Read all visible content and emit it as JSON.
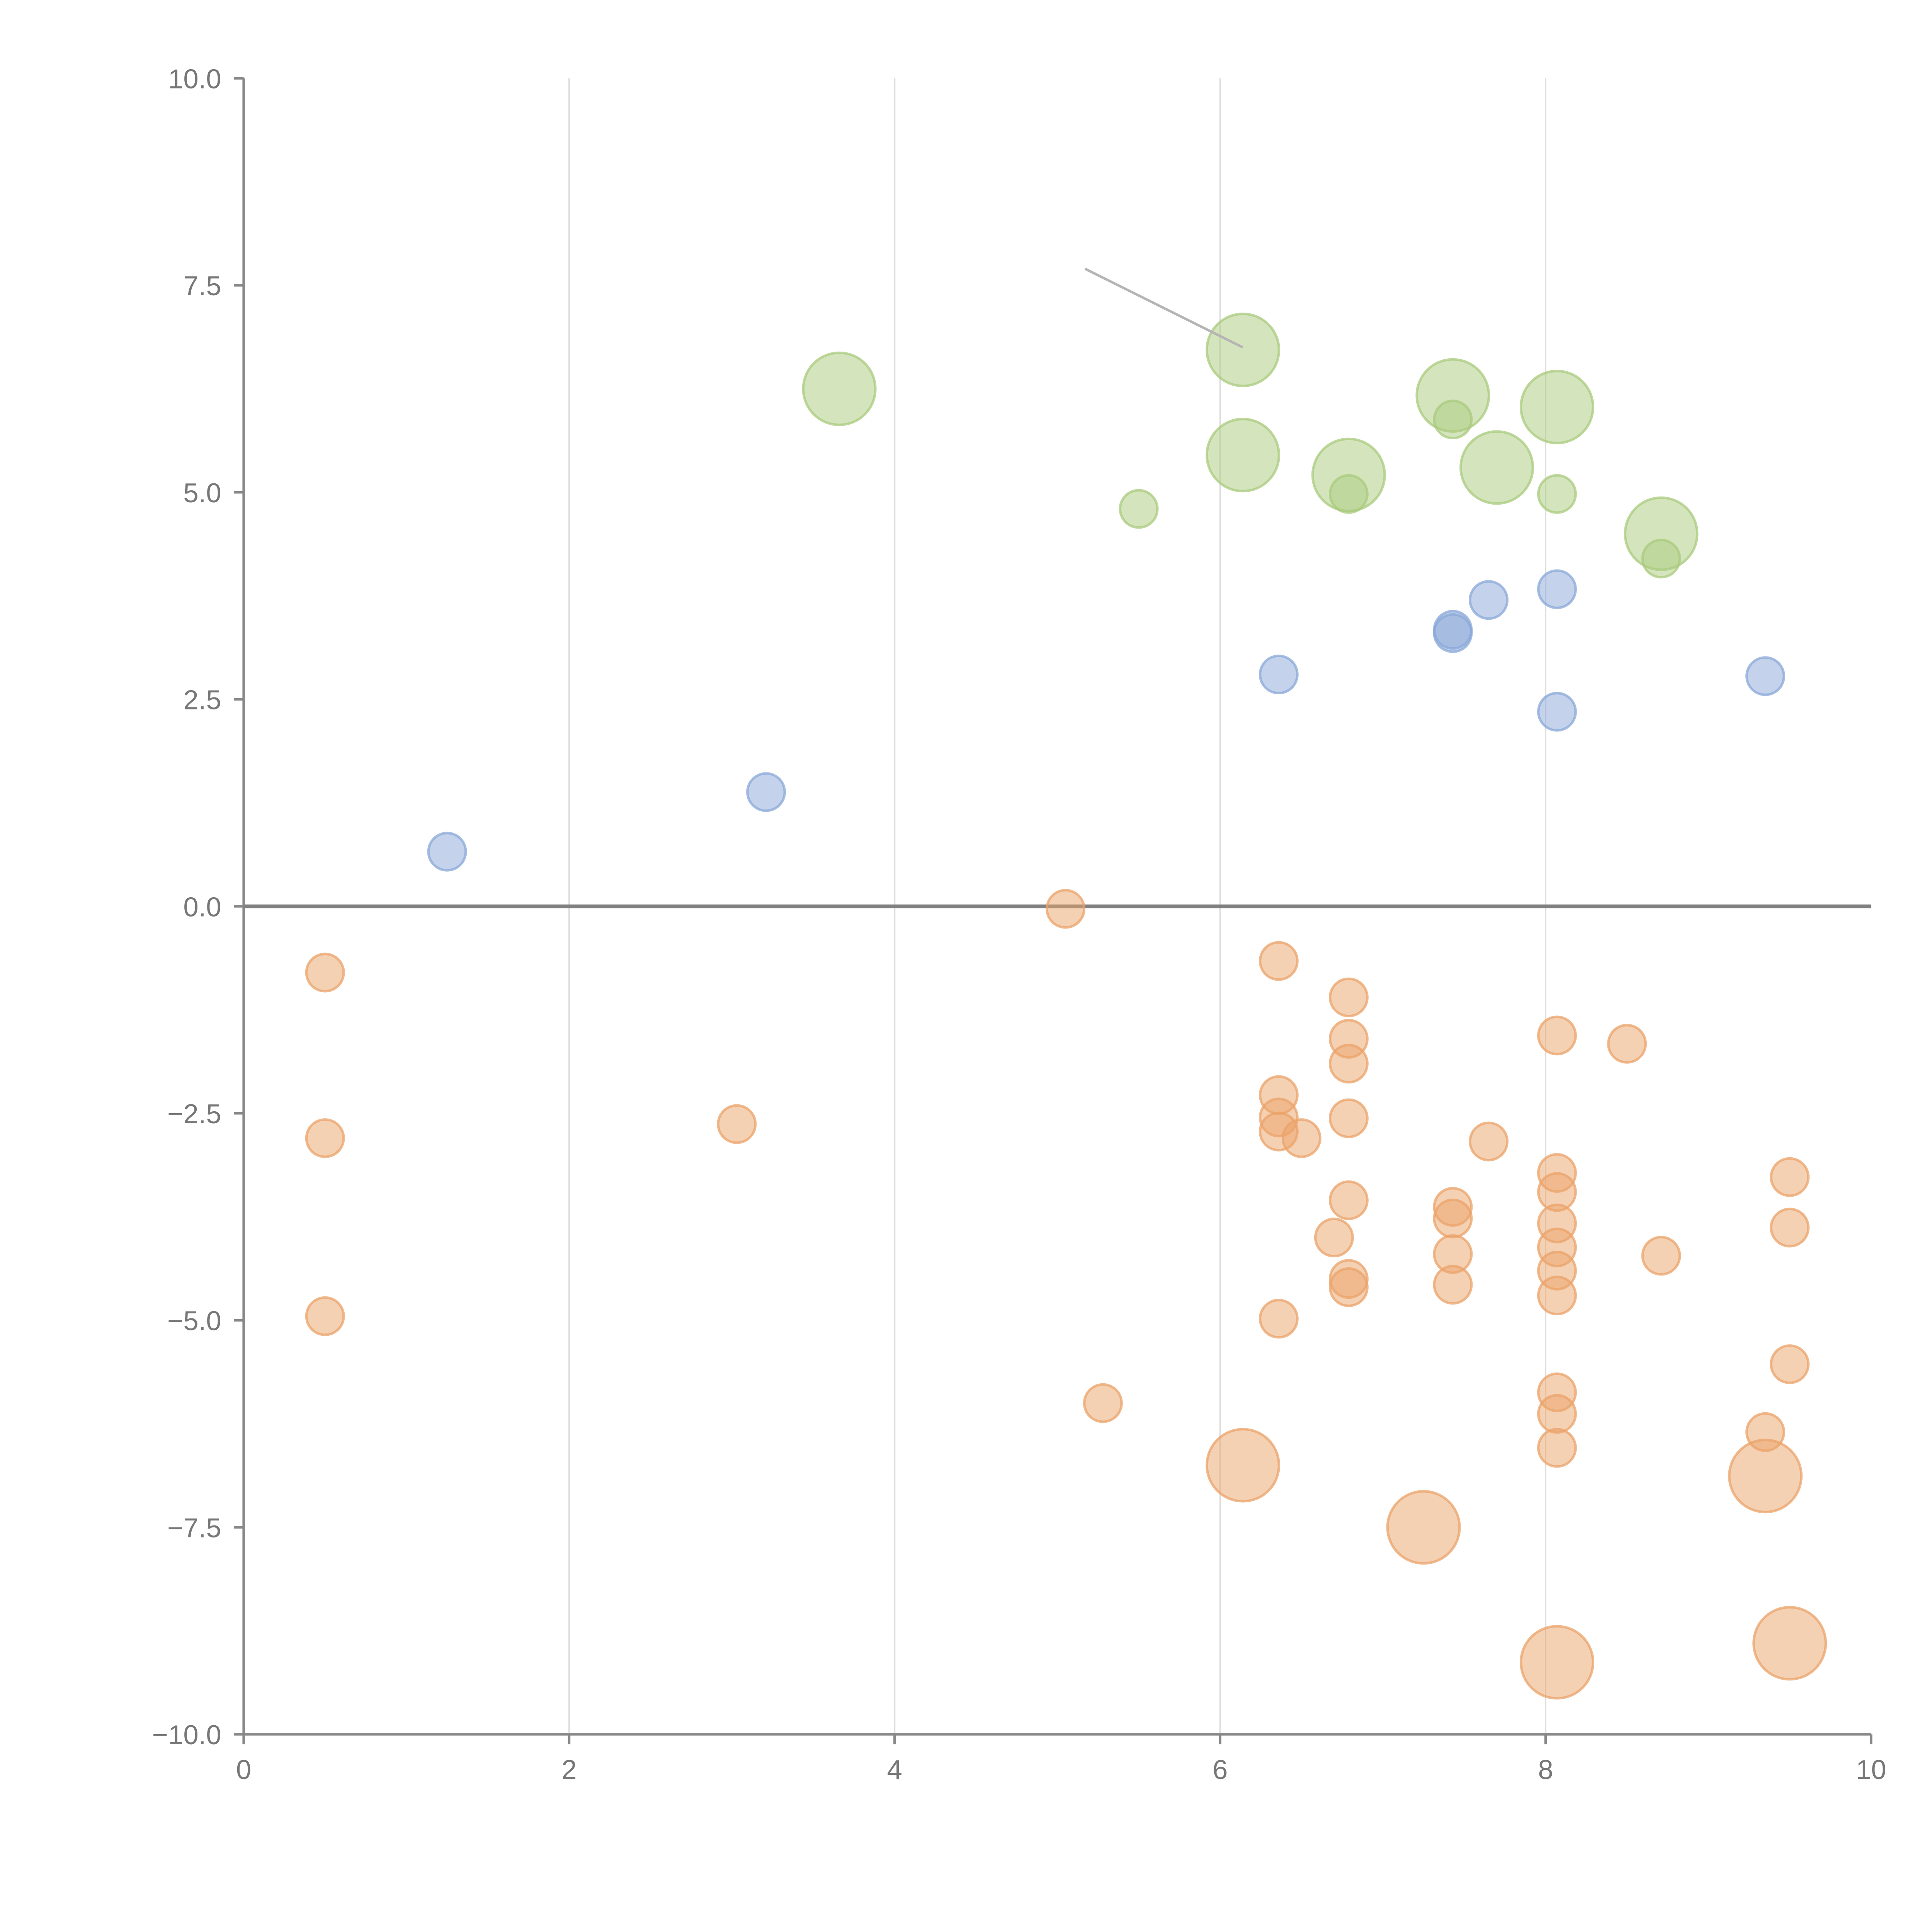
{
  "colors": {
    "neg": "#eba36a",
    "pos_small": "#8aa8d8",
    "pos_big": "#aacb7e",
    "axis": "#888888",
    "grid": "#dddddd"
  },
  "chart_data": {
    "type": "scatter",
    "title": "",
    "xlabel": "",
    "ylabel": "",
    "xlim": [
      0,
      10
    ],
    "ylim": [
      -10,
      10
    ],
    "grid": true,
    "legend": "none",
    "x_ticks": [
      0,
      2,
      4,
      6,
      8,
      10
    ],
    "y_ticks": [
      10.0,
      7.5,
      5.0,
      2.5,
      0.0,
      -2.5,
      -5.0,
      -7.5,
      -10.0
    ],
    "x_tick_labels": [
      "0",
      "2",
      "4",
      "6",
      "8",
      "10"
    ],
    "y_tick_labels": [
      "10.0",
      "7.5",
      "5.0",
      "2.5",
      "0.0",
      "−2.5",
      "−5.0",
      "−7.5",
      "−10.0"
    ],
    "series": [
      {
        "name": "orange",
        "color": "#eba36a",
        "points": [
          {
            "x": 0.5,
            "y": -0.8,
            "r": 1
          },
          {
            "x": 0.5,
            "y": -2.8,
            "r": 1
          },
          {
            "x": 0.5,
            "y": -4.95,
            "r": 1
          },
          {
            "x": 3.03,
            "y": -2.63,
            "r": 1
          },
          {
            "x": 5.05,
            "y": -0.03,
            "r": 1
          },
          {
            "x": 5.28,
            "y": -6.0,
            "r": 1
          },
          {
            "x": 6.36,
            "y": -0.66,
            "r": 1
          },
          {
            "x": 6.36,
            "y": -2.28,
            "r": 1
          },
          {
            "x": 6.36,
            "y": -2.55,
            "r": 1
          },
          {
            "x": 6.36,
            "y": -2.72,
            "r": 1
          },
          {
            "x": 6.5,
            "y": -2.8,
            "r": 1
          },
          {
            "x": 6.36,
            "y": -4.98,
            "r": 1
          },
          {
            "x": 6.79,
            "y": -1.1,
            "r": 1
          },
          {
            "x": 6.79,
            "y": -1.6,
            "r": 1
          },
          {
            "x": 6.79,
            "y": -1.9,
            "r": 1
          },
          {
            "x": 6.79,
            "y": -2.56,
            "r": 1
          },
          {
            "x": 6.79,
            "y": -3.55,
            "r": 1
          },
          {
            "x": 6.7,
            "y": -4.0,
            "r": 1
          },
          {
            "x": 6.79,
            "y": -4.5,
            "r": 1
          },
          {
            "x": 6.79,
            "y": -4.6,
            "r": 1
          },
          {
            "x": 7.43,
            "y": -3.63,
            "r": 1
          },
          {
            "x": 7.43,
            "y": -3.77,
            "r": 1
          },
          {
            "x": 7.43,
            "y": -4.2,
            "r": 1
          },
          {
            "x": 7.43,
            "y": -4.57,
            "r": 1
          },
          {
            "x": 7.65,
            "y": -2.84,
            "r": 1
          },
          {
            "x": 8.07,
            "y": -1.56,
            "r": 1
          },
          {
            "x": 8.07,
            "y": -3.22,
            "r": 1
          },
          {
            "x": 8.07,
            "y": -3.45,
            "r": 1
          },
          {
            "x": 8.07,
            "y": -3.83,
            "r": 1
          },
          {
            "x": 8.07,
            "y": -4.12,
            "r": 1
          },
          {
            "x": 8.07,
            "y": -4.4,
            "r": 1
          },
          {
            "x": 8.07,
            "y": -4.7,
            "r": 1
          },
          {
            "x": 8.07,
            "y": -5.87,
            "r": 1
          },
          {
            "x": 8.07,
            "y": -6.13,
            "r": 1
          },
          {
            "x": 8.07,
            "y": -6.54,
            "r": 1
          },
          {
            "x": 8.5,
            "y": -1.66,
            "r": 1
          },
          {
            "x": 8.71,
            "y": -4.22,
            "r": 1
          },
          {
            "x": 9.35,
            "y": -6.35,
            "r": 1
          },
          {
            "x": 9.5,
            "y": -3.27,
            "r": 1
          },
          {
            "x": 9.5,
            "y": -3.88,
            "r": 1
          },
          {
            "x": 9.5,
            "y": -5.53,
            "r": 1
          },
          {
            "x": 6.14,
            "y": -6.75,
            "r": 2
          },
          {
            "x": 7.25,
            "y": -7.5,
            "r": 2
          },
          {
            "x": 8.07,
            "y": -9.13,
            "r": 2
          },
          {
            "x": 9.35,
            "y": -6.88,
            "r": 2
          },
          {
            "x": 9.5,
            "y": -8.9,
            "r": 2
          }
        ]
      },
      {
        "name": "blue",
        "color": "#8aa8d8",
        "points": [
          {
            "x": 1.25,
            "y": 0.66,
            "r": 1
          },
          {
            "x": 3.21,
            "y": 1.38,
            "r": 1
          },
          {
            "x": 6.36,
            "y": 2.8,
            "r": 1
          },
          {
            "x": 7.43,
            "y": 3.3,
            "r": 1
          },
          {
            "x": 7.43,
            "y": 3.34,
            "r": 1
          },
          {
            "x": 7.65,
            "y": 3.7,
            "r": 1
          },
          {
            "x": 8.07,
            "y": 3.83,
            "r": 1
          },
          {
            "x": 8.07,
            "y": 2.35,
            "r": 1
          },
          {
            "x": 9.35,
            "y": 2.78,
            "r": 1
          }
        ]
      },
      {
        "name": "green",
        "color": "#aacb7e",
        "points": [
          {
            "x": 5.5,
            "y": 4.8,
            "r": 1
          },
          {
            "x": 6.79,
            "y": 4.98,
            "r": 1
          },
          {
            "x": 7.43,
            "y": 5.88,
            "r": 1
          },
          {
            "x": 8.07,
            "y": 4.98,
            "r": 1
          },
          {
            "x": 8.71,
            "y": 4.2,
            "r": 1
          },
          {
            "x": 3.66,
            "y": 6.25,
            "r": 2
          },
          {
            "x": 6.14,
            "y": 6.72,
            "r": 2
          },
          {
            "x": 6.14,
            "y": 5.45,
            "r": 2
          },
          {
            "x": 6.79,
            "y": 5.21,
            "r": 2
          },
          {
            "x": 7.43,
            "y": 6.17,
            "r": 2
          },
          {
            "x": 7.7,
            "y": 5.3,
            "r": 2
          },
          {
            "x": 8.07,
            "y": 6.03,
            "r": 2
          },
          {
            "x": 8.71,
            "y": 4.5,
            "r": 2
          }
        ]
      }
    ],
    "annotation_line": {
      "from": [
        5.17,
        7.7
      ],
      "to": [
        6.14,
        6.75
      ]
    }
  }
}
